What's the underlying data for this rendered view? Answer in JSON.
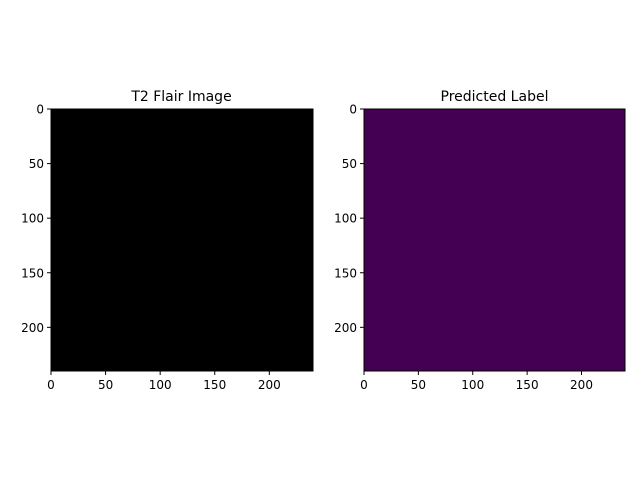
{
  "chart_data": [
    {
      "type": "heatmap",
      "title": "T2 Flair Image",
      "fill_color": "#000000",
      "xlim": [
        0,
        240
      ],
      "ylim": [
        240,
        0
      ],
      "x_ticks": [
        0,
        50,
        100,
        150,
        200
      ],
      "y_ticks": [
        0,
        50,
        100,
        150,
        200
      ],
      "grid": false
    },
    {
      "type": "heatmap",
      "title": "Predicted Label",
      "fill_color": "#440154",
      "xlim": [
        0,
        240
      ],
      "ylim": [
        240,
        0
      ],
      "x_ticks": [
        0,
        50,
        100,
        150,
        200
      ],
      "y_ticks": [
        0,
        50,
        100,
        150,
        200
      ],
      "grid": false
    }
  ]
}
